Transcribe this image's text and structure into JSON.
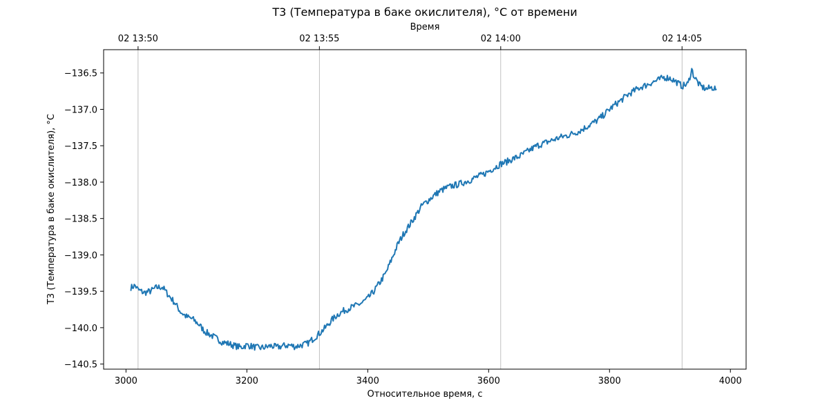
{
  "chart_data": {
    "type": "line",
    "title": "T3 (Температура в баке окислителя), °C от времени",
    "xlabel": "Относительное время, с",
    "ylabel": "T3 (Температура в баке окислителя), °C",
    "top_xlabel": "Время",
    "xlim": [
      2963,
      4026
    ],
    "ylim": [
      -140.57,
      -136.18
    ],
    "xticks": [
      3000,
      3200,
      3400,
      3600,
      3800,
      4000
    ],
    "xtick_labels": [
      "3000",
      "3200",
      "3400",
      "3600",
      "3800",
      "4000"
    ],
    "yticks": [
      -136.5,
      -137.0,
      -137.5,
      -138.0,
      -138.5,
      -139.0,
      -139.5,
      -140.0,
      -140.5
    ],
    "ytick_labels": [
      "−136.5",
      "−137.0",
      "−137.5",
      "−138.0",
      "−138.5",
      "−139.0",
      "−139.5",
      "−140.0",
      "−140.5"
    ],
    "top_xticks": [
      3020,
      3320,
      3620,
      3920
    ],
    "top_xtick_labels": [
      "02 13:50",
      "02 13:55",
      "02 14:00",
      "02 14:05"
    ],
    "grid": "vertical lines at top-axis ticks",
    "color": "#1f77b4",
    "series": [
      {
        "x": [
          3008,
          3015,
          3020,
          3030,
          3040,
          3050,
          3060,
          3070,
          3080,
          3090,
          3100,
          3110,
          3120,
          3130,
          3140,
          3150,
          3160,
          3170,
          3180,
          3190,
          3200,
          3210,
          3220,
          3230,
          3240,
          3250,
          3260,
          3270,
          3280,
          3290,
          3300,
          3310,
          3320,
          3330,
          3340,
          3350,
          3360,
          3370,
          3380,
          3390,
          3400,
          3410,
          3420,
          3430,
          3440,
          3450,
          3460,
          3470,
          3480,
          3490,
          3500,
          3510,
          3520,
          3530,
          3540,
          3550,
          3560,
          3570,
          3580,
          3590,
          3600,
          3610,
          3620,
          3630,
          3640,
          3650,
          3660,
          3670,
          3680,
          3690,
          3700,
          3710,
          3720,
          3730,
          3740,
          3750,
          3760,
          3770,
          3780,
          3790,
          3800,
          3810,
          3820,
          3830,
          3840,
          3850,
          3860,
          3870,
          3880,
          3890,
          3900,
          3910,
          3920,
          3930,
          3936,
          3940,
          3950,
          3960,
          3970,
          3977
        ],
        "y": [
          -139.45,
          -139.42,
          -139.48,
          -139.52,
          -139.5,
          -139.45,
          -139.44,
          -139.55,
          -139.65,
          -139.78,
          -139.85,
          -139.88,
          -139.95,
          -140.05,
          -140.1,
          -140.15,
          -140.2,
          -140.22,
          -140.25,
          -140.27,
          -140.24,
          -140.26,
          -140.28,
          -140.27,
          -140.25,
          -140.27,
          -140.25,
          -140.24,
          -140.26,
          -140.24,
          -140.22,
          -140.15,
          -140.08,
          -140.0,
          -139.9,
          -139.82,
          -139.77,
          -139.73,
          -139.7,
          -139.66,
          -139.6,
          -139.5,
          -139.38,
          -139.25,
          -139.05,
          -138.85,
          -138.7,
          -138.58,
          -138.45,
          -138.32,
          -138.25,
          -138.18,
          -138.12,
          -138.08,
          -138.05,
          -138.03,
          -138.0,
          -137.97,
          -137.93,
          -137.9,
          -137.85,
          -137.8,
          -137.75,
          -137.72,
          -137.68,
          -137.65,
          -137.6,
          -137.55,
          -137.5,
          -137.47,
          -137.44,
          -137.41,
          -137.38,
          -137.36,
          -137.33,
          -137.3,
          -137.25,
          -137.2,
          -137.15,
          -137.08,
          -137.0,
          -136.93,
          -136.87,
          -136.8,
          -136.75,
          -136.7,
          -136.67,
          -136.63,
          -136.6,
          -136.56,
          -136.57,
          -136.62,
          -136.68,
          -136.65,
          -136.45,
          -136.55,
          -136.68,
          -136.72,
          -136.7,
          -136.72
        ]
      }
    ]
  }
}
